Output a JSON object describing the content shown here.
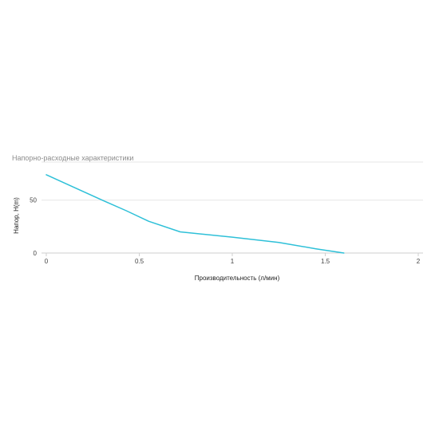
{
  "chart_data": {
    "type": "line",
    "title": "Напорно-расходные характеристики",
    "xlabel": "Производительность (л/мин)",
    "ylabel": "Напор, H(m)",
    "xlim": [
      0,
      2
    ],
    "ylim": [
      0,
      75
    ],
    "x_ticks": [
      0,
      0.5,
      1,
      1.5,
      2
    ],
    "x_tick_labels": [
      "0",
      "0.5",
      "1",
      "1.5",
      "2"
    ],
    "y_ticks": [
      0,
      50
    ],
    "y_tick_labels": [
      "0",
      "50"
    ],
    "grid": true,
    "legend": "none",
    "series": [
      {
        "color": "#2ec0d8",
        "x": [
          0,
          0.15,
          0.3,
          0.43,
          0.55,
          0.72,
          1.0,
          1.25,
          1.45,
          1.6
        ],
        "y": [
          74,
          62,
          50,
          40,
          30,
          20,
          15,
          10,
          4,
          0
        ]
      }
    ]
  },
  "colors": {
    "grid": "#e6e6e6",
    "axis": "#cfcfcf",
    "line": "#2ec0d8"
  }
}
